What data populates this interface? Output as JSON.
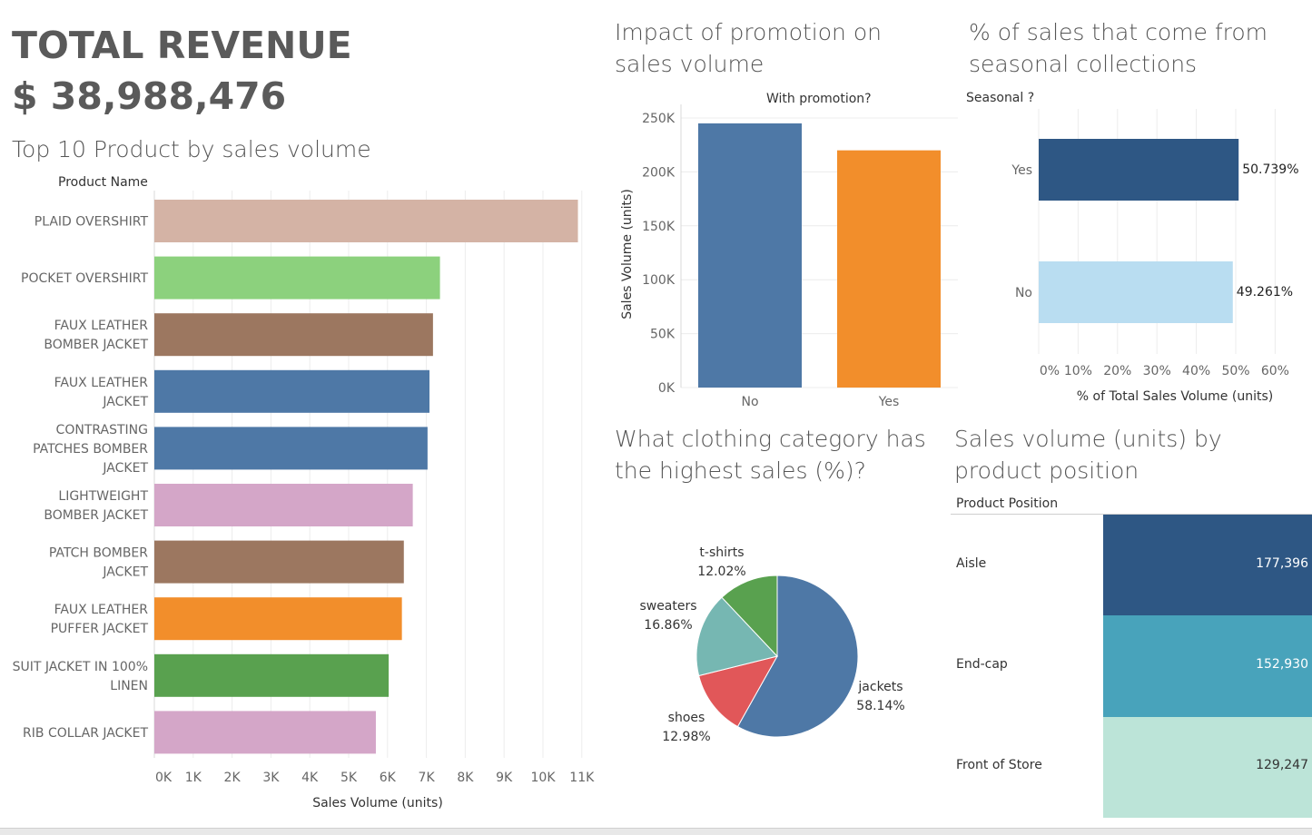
{
  "header": {
    "total_label": "TOTAL REVENUE",
    "total_value": "$ 38,988,476"
  },
  "top_products": {
    "title": "Top 10 Product by sales volume",
    "column_header": "Product Name",
    "xlabel": "Sales Volume (units)",
    "ticks": [
      "0K",
      "1K",
      "2K",
      "3K",
      "4K",
      "5K",
      "6K",
      "7K",
      "8K",
      "9K",
      "10K",
      "11K"
    ]
  },
  "promotion": {
    "title": "Impact of promotion on sales volume",
    "column_header": "With promotion?",
    "ylabel": "Sales Volume (units)",
    "ticks": [
      "0K",
      "50K",
      "100K",
      "150K",
      "200K",
      "250K"
    ]
  },
  "seasonal": {
    "title": "% of sales that come from seasonal collections",
    "column_header": "Seasonal ?",
    "xlabel": "% of Total Sales Volume (units)",
    "ticks": [
      "0%",
      "10%",
      "20%",
      "30%",
      "40%",
      "50%",
      "60%"
    ]
  },
  "category": {
    "title": "What clothing category has the highest sales (%)?"
  },
  "position": {
    "title": "Sales volume (units) by product position",
    "column_header": "Product Position"
  },
  "chart_data": [
    {
      "type": "bar",
      "orientation": "horizontal",
      "title": "Top 10 Product by sales volume",
      "xlabel": "Sales Volume (units)",
      "xlim": [
        0,
        11000
      ],
      "categories": [
        "PLAID OVERSHIRT",
        "POCKET OVERSHIRT",
        "FAUX LEATHER BOMBER JACKET",
        "FAUX LEATHER JACKET",
        "CONTRASTING PATCHES BOMBER JACKET",
        "LIGHTWEIGHT BOMBER JACKET",
        "PATCH BOMBER JACKET",
        "FAUX LEATHER PUFFER JACKET",
        "SUIT JACKET IN 100% LINEN",
        "RIB COLLAR JACKET"
      ],
      "label_lines": [
        [
          "PLAID OVERSHIRT"
        ],
        [
          "POCKET OVERSHIRT"
        ],
        [
          "FAUX LEATHER",
          "BOMBER JACKET"
        ],
        [
          "FAUX LEATHER",
          "JACKET"
        ],
        [
          "CONTRASTING",
          "PATCHES BOMBER",
          "JACKET"
        ],
        [
          "LIGHTWEIGHT",
          "BOMBER JACKET"
        ],
        [
          "PATCH BOMBER",
          "JACKET"
        ],
        [
          "FAUX LEATHER",
          "PUFFER JACKET"
        ],
        [
          "SUIT JACKET IN 100%",
          "LINEN"
        ],
        [
          "RIB COLLAR JACKET"
        ]
      ],
      "values": [
        10900,
        7350,
        7170,
        7080,
        7030,
        6650,
        6420,
        6370,
        6030,
        5700
      ],
      "colors": [
        "#d4b3a5",
        "#8cd17d",
        "#9c7760",
        "#4e78a6",
        "#4e78a6",
        "#d4a6c8",
        "#9c7760",
        "#f28e2b",
        "#59a14f",
        "#d4a6c8"
      ],
      "grid": true
    },
    {
      "type": "bar",
      "title": "Impact of promotion on sales volume",
      "ylabel": "Sales Volume (units)",
      "categories": [
        "No",
        "Yes"
      ],
      "values": [
        245000,
        220000
      ],
      "colors": [
        "#4e78a6",
        "#f28e2b"
      ],
      "ylim": [
        0,
        250000
      ],
      "grid": true
    },
    {
      "type": "bar",
      "orientation": "horizontal",
      "title": "% of sales that come from seasonal collections",
      "xlabel": "% of Total Sales Volume (units)",
      "categories": [
        "Yes",
        "No"
      ],
      "values": [
        50.739,
        49.261
      ],
      "data_labels": [
        "50.739%",
        "49.261%"
      ],
      "colors": [
        "#2e5784",
        "#b9ddf1"
      ],
      "xlim": [
        0,
        60
      ]
    },
    {
      "type": "pie",
      "title": "What clothing category has the highest sales (%)?",
      "categories": [
        "jackets",
        "shoes",
        "sweaters",
        "t-shirts"
      ],
      "values": [
        58.14,
        12.98,
        16.86,
        12.02
      ],
      "data_labels": [
        "58.14%",
        "12.98%",
        "16.86%",
        "12.02%"
      ],
      "colors": [
        "#4e78a6",
        "#e15759",
        "#76b7b2",
        "#59a14f"
      ]
    },
    {
      "type": "table",
      "title": "Sales volume (units) by product position",
      "categories": [
        "Aisle",
        "End-cap",
        "Front of Store"
      ],
      "values": [
        177396,
        152930,
        129247
      ],
      "data_labels": [
        "177,396",
        "152,930",
        "129,247"
      ],
      "colors": [
        "#2e5784",
        "#48a3bb",
        "#bce4d8"
      ]
    }
  ]
}
